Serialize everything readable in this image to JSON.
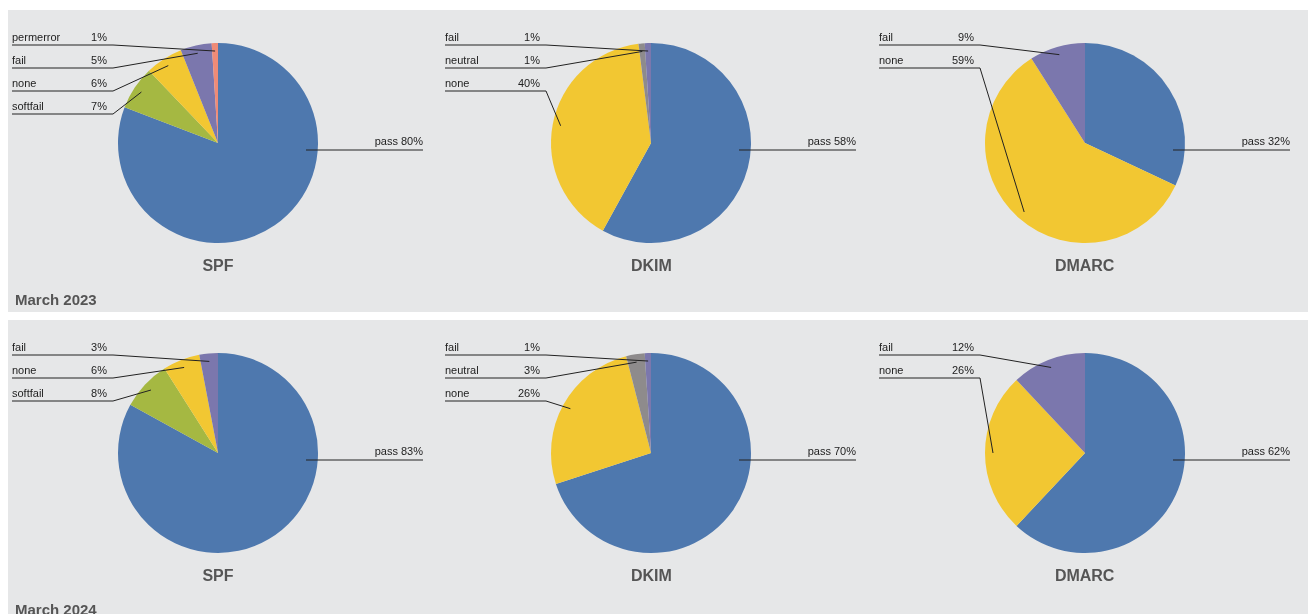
{
  "chart_data": [
    {
      "type": "pie",
      "title": "SPF",
      "categories": [
        "pass",
        "softfail",
        "none",
        "fail",
        "permerror"
      ],
      "values": [
        80,
        7,
        6,
        5,
        1
      ],
      "value_labels": [
        "80%",
        "7%",
        "6%",
        "5%",
        "1%"
      ],
      "colors": [
        "#4e78ae",
        "#a5b842",
        "#f2c732",
        "#7b77ad",
        "#ef8b77"
      ],
      "annotations": [
        "March 2023"
      ]
    },
    {
      "type": "pie",
      "title": "DKIM",
      "categories": [
        "pass",
        "none",
        "neutral",
        "fail"
      ],
      "values": [
        58,
        40,
        1,
        1
      ],
      "value_labels": [
        "58%",
        "40%",
        "1%",
        "1%"
      ],
      "colors": [
        "#4e78ae",
        "#f2c732",
        "#8e8b8c",
        "#7b77ad"
      ]
    },
    {
      "type": "pie",
      "title": "DMARC",
      "categories": [
        "pass",
        "none",
        "fail"
      ],
      "values": [
        32,
        59,
        9
      ],
      "value_labels": [
        "32%",
        "59%",
        "9%"
      ],
      "colors": [
        "#4e78ae",
        "#f2c732",
        "#7b77ad"
      ]
    },
    {
      "type": "pie",
      "title": "SPF",
      "categories": [
        "pass",
        "softfail",
        "none",
        "fail"
      ],
      "values": [
        83,
        8,
        6,
        3
      ],
      "value_labels": [
        "83%",
        "8%",
        "6%",
        "3%"
      ],
      "colors": [
        "#4e78ae",
        "#a5b842",
        "#f2c732",
        "#7b77ad"
      ],
      "annotations": [
        "March 2024"
      ]
    },
    {
      "type": "pie",
      "title": "DKIM",
      "categories": [
        "pass",
        "none",
        "neutral",
        "fail"
      ],
      "values": [
        70,
        26,
        3,
        1
      ],
      "value_labels": [
        "70%",
        "26%",
        "3%",
        "1%"
      ],
      "colors": [
        "#4e78ae",
        "#f2c732",
        "#8e8b8c",
        "#7b77ad"
      ]
    },
    {
      "type": "pie",
      "title": "DMARC",
      "categories": [
        "pass",
        "none",
        "fail"
      ],
      "values": [
        62,
        26,
        12
      ],
      "value_labels": [
        "62%",
        "26%",
        "12%"
      ],
      "colors": [
        "#4e78ae",
        "#f2c732",
        "#7b77ad"
      ]
    }
  ]
}
